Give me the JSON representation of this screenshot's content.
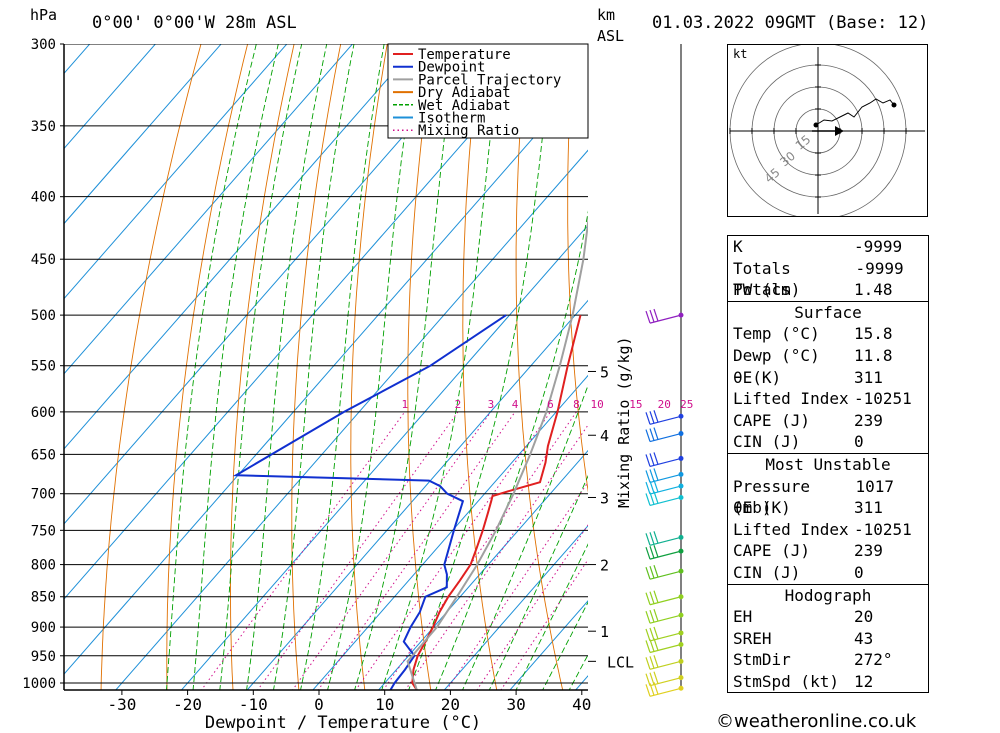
{
  "header": {
    "pressure_unit": "hPa",
    "location": "0°00' 0°00'W 28m ASL",
    "km_label": "km",
    "asl_label": "ASL",
    "datetime": "01.03.2022 09GMT (Base: 12)"
  },
  "chart_data": {
    "type": "line",
    "xlabel": "Dewpoint / Temperature (°C)",
    "ylabel": "hPa",
    "right_axis_label": "Mixing Ratio (g/kg)",
    "x_ticks": [
      -30,
      -20,
      -10,
      0,
      10,
      20,
      30,
      40
    ],
    "pressure_levels": [
      300,
      350,
      400,
      450,
      500,
      550,
      600,
      650,
      700,
      750,
      800,
      850,
      900,
      950,
      1000
    ],
    "km_ticks": [
      {
        "label": "5",
        "p": 556
      },
      {
        "label": "4",
        "p": 627
      },
      {
        "label": "3",
        "p": 705
      },
      {
        "label": "2",
        "p": 800
      },
      {
        "label": "1",
        "p": 907
      },
      {
        "label": "LCL",
        "p": 960
      }
    ],
    "mixing_ratio_labels": [
      "1",
      "2",
      "3",
      "4",
      "6",
      "8",
      "10",
      "15",
      "20",
      "25"
    ],
    "legend": [
      {
        "name": "Temperature",
        "color": "#e02020",
        "style": "solid"
      },
      {
        "name": "Dewpoint",
        "color": "#1030d0",
        "style": "solid"
      },
      {
        "name": "Parcel Trajectory",
        "color": "#a0a0a0",
        "style": "solid"
      },
      {
        "name": "Dry Adiabat",
        "color": "#e07000",
        "style": "solid"
      },
      {
        "name": "Wet Adiabat",
        "color": "#00a000",
        "style": "dash"
      },
      {
        "name": "Isotherm",
        "color": "#1e90d8",
        "style": "solid"
      },
      {
        "name": "Mixing Ratio",
        "color": "#d0108c",
        "style": "dot"
      }
    ],
    "series": [
      {
        "name": "Temperature",
        "points": [
          [
            1013,
            15.8
          ],
          [
            1000,
            14.2
          ],
          [
            975,
            12.6
          ],
          [
            950,
            11.4
          ],
          [
            925,
            10.7
          ],
          [
            900,
            9.9
          ],
          [
            875,
            8.9
          ],
          [
            850,
            8.2
          ],
          [
            825,
            7.8
          ],
          [
            800,
            7.3
          ],
          [
            775,
            6.0
          ],
          [
            750,
            4.6
          ],
          [
            725,
            3.0
          ],
          [
            710,
            2.0
          ],
          [
            703,
            1.5
          ],
          [
            695,
            3.8
          ],
          [
            685,
            6.9
          ],
          [
            660,
            5.1
          ],
          [
            640,
            3.3
          ],
          [
            600,
            0.2
          ],
          [
            550,
            -4.4
          ],
          [
            500,
            -9.2
          ]
        ]
      },
      {
        "name": "Dewpoint",
        "points": [
          [
            1013,
            11.8
          ],
          [
            1000,
            11.5
          ],
          [
            975,
            11.3
          ],
          [
            950,
            10.9
          ],
          [
            925,
            7.4
          ],
          [
            900,
            6.5
          ],
          [
            875,
            5.9
          ],
          [
            850,
            4.7
          ],
          [
            835,
            6.7
          ],
          [
            815,
            5.0
          ],
          [
            800,
            3.3
          ],
          [
            750,
            0.2
          ],
          [
            710,
            -2.3
          ],
          [
            700,
            -5.7
          ],
          [
            690,
            -7.8
          ],
          [
            683,
            -10.2
          ],
          [
            676,
            -40.3
          ],
          [
            600,
            -32.3
          ],
          [
            550,
            -25.3
          ],
          [
            500,
            -20.5
          ]
        ]
      },
      {
        "name": "Parcel Trajectory",
        "points": [
          [
            1013,
            15.8
          ],
          [
            960,
            10.6
          ],
          [
            900,
            10.5
          ],
          [
            850,
            9.5
          ],
          [
            800,
            8.3
          ],
          [
            750,
            6.6
          ],
          [
            700,
            4.4
          ],
          [
            650,
            1.7
          ],
          [
            600,
            -1.5
          ],
          [
            550,
            -5.6
          ],
          [
            500,
            -10.4
          ],
          [
            450,
            -16.2
          ],
          [
            400,
            -23.3
          ],
          [
            350,
            -32.0
          ],
          [
            300,
            -42.5
          ]
        ]
      }
    ],
    "wind_barbs": [
      {
        "p": 500,
        "color": "#9020c0"
      },
      {
        "p": 605,
        "color": "#2040e0"
      },
      {
        "p": 625,
        "color": "#1070e0"
      },
      {
        "p": 655,
        "color": "#2040e0"
      },
      {
        "p": 675,
        "color": "#1098e0"
      },
      {
        "p": 690,
        "color": "#10b0e0"
      },
      {
        "p": 705,
        "color": "#10c0d0"
      },
      {
        "p": 760,
        "color": "#10b090"
      },
      {
        "p": 780,
        "color": "#10a040"
      },
      {
        "p": 810,
        "color": "#60c020"
      },
      {
        "p": 850,
        "color": "#90d020"
      },
      {
        "p": 880,
        "color": "#90d020"
      },
      {
        "p": 910,
        "color": "#a0d020"
      },
      {
        "p": 930,
        "color": "#a0d020"
      },
      {
        "p": 960,
        "color": "#c0d020"
      },
      {
        "p": 990,
        "color": "#d0d020"
      },
      {
        "p": 1010,
        "color": "#e0d020"
      }
    ]
  },
  "hodograph": {
    "unit_label": "kt",
    "ring_labels": [
      "15",
      "30",
      "45"
    ]
  },
  "indices": {
    "block1": [
      {
        "label": "K",
        "value": "-9999"
      },
      {
        "label": "Totals Totals",
        "value": "-9999"
      },
      {
        "label": "PW (cm)",
        "value": "1.48"
      }
    ],
    "surface": {
      "title": "Surface",
      "rows": [
        {
          "label": "Temp (°C)",
          "value": "15.8"
        },
        {
          "label": "Dewp (°C)",
          "value": "11.8"
        },
        {
          "label": "θE(K)",
          "value": "311"
        },
        {
          "label": "Lifted Index",
          "value": "-10251"
        },
        {
          "label": "CAPE (J)",
          "value": "239"
        },
        {
          "label": "CIN (J)",
          "value": "0"
        }
      ]
    },
    "most_unstable": {
      "title": "Most Unstable",
      "rows": [
        {
          "label": "Pressure (mb)",
          "value": "1017"
        },
        {
          "label": "θE (K)",
          "value": "311"
        },
        {
          "label": "Lifted Index",
          "value": "-10251"
        },
        {
          "label": "CAPE (J)",
          "value": "239"
        },
        {
          "label": "CIN (J)",
          "value": "0"
        }
      ]
    },
    "hodograph_params": {
      "title": "Hodograph",
      "rows": [
        {
          "label": "EH",
          "value": "20"
        },
        {
          "label": "SREH",
          "value": "43"
        },
        {
          "label": "StmDir",
          "value": "272°"
        },
        {
          "label": "StmSpd (kt)",
          "value": "12"
        }
      ]
    }
  },
  "footer": "©weatheronline.co.uk"
}
